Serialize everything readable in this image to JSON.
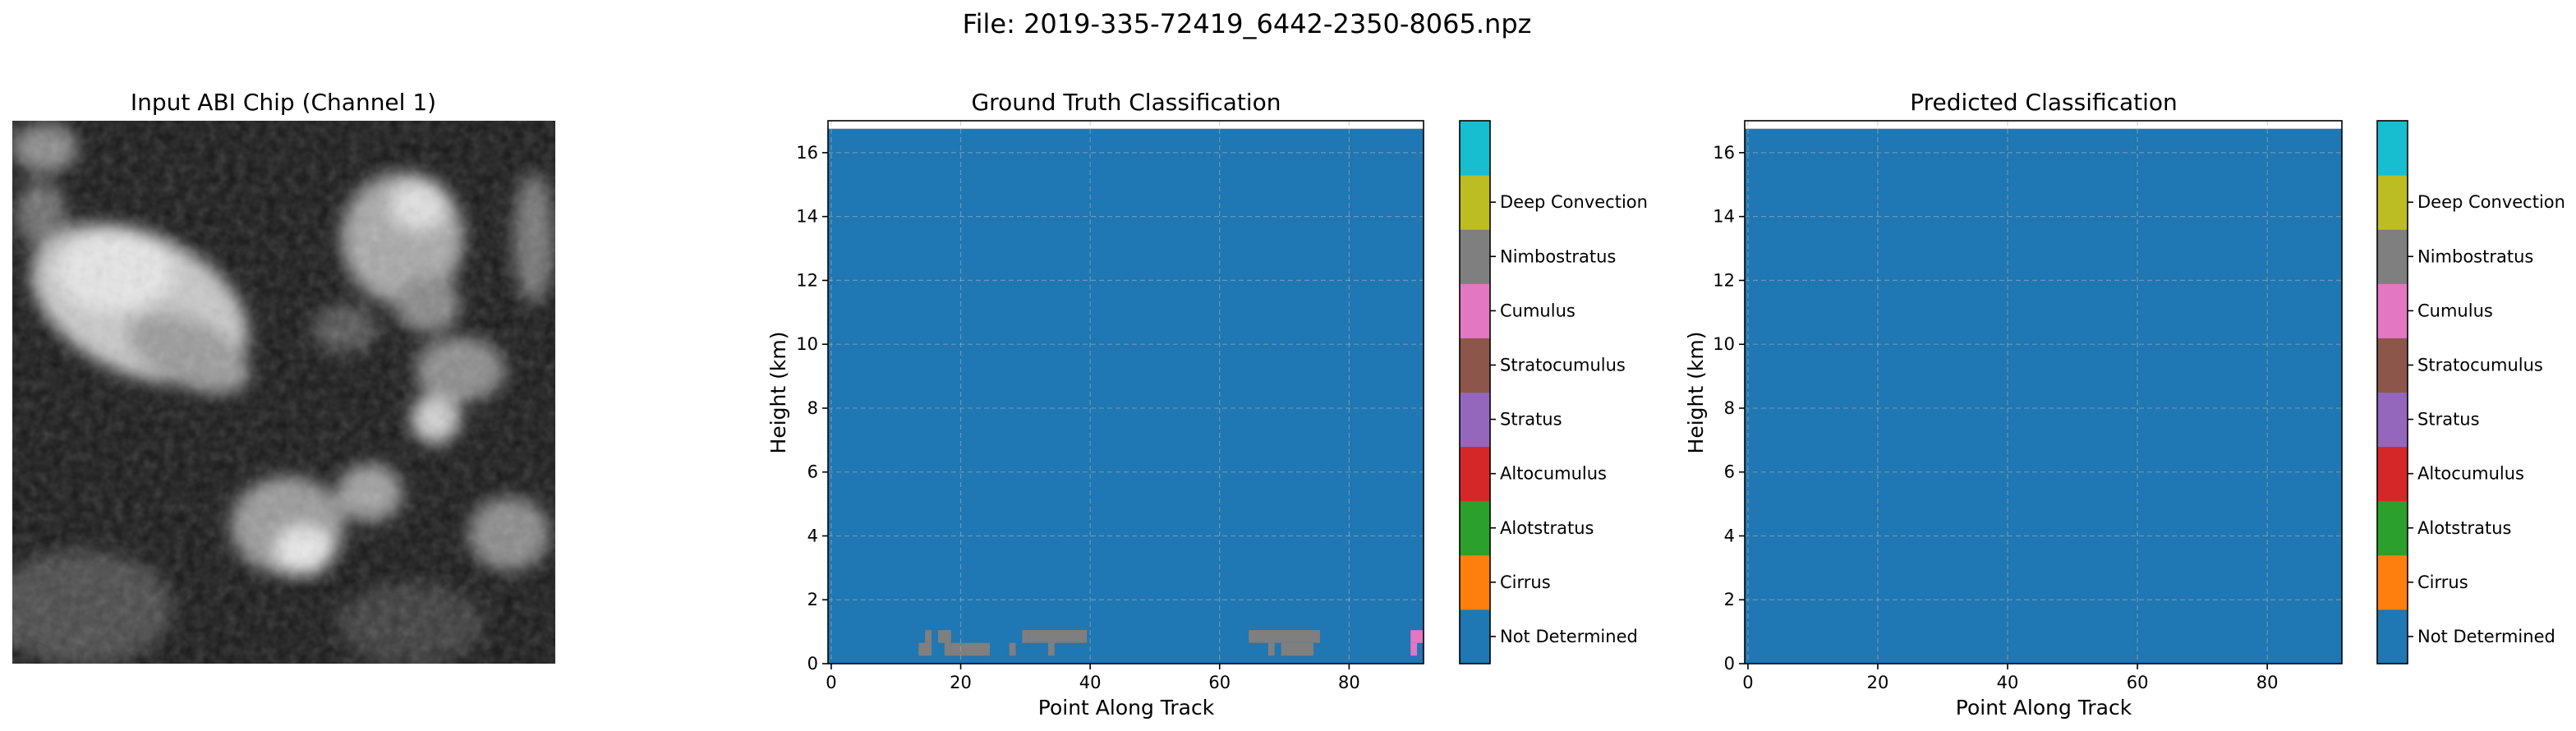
{
  "suptitle": "File: 2019-335-72419_6442-2350-8065.npz",
  "image_panel": {
    "title": "Input ABI Chip (Channel 1)"
  },
  "colors": {
    "Not Determined": "#1f77b4",
    "Cirrus": "#ff7f0e",
    "Alotstratus": "#2ca02c",
    "Altocumulus": "#d62728",
    "Stratus": "#9467bd",
    "Stratocumulus": "#8c564b",
    "Cumulus": "#e377c2",
    "Nimbostratus": "#7f7f7f",
    "Deep Convection": "#bcbd22",
    "Extra": "#17becf"
  },
  "colorbar": {
    "labels": [
      "Not Determined",
      "Cirrus",
      "Alotstratus",
      "Altocumulus",
      "Stratus",
      "Stratocumulus",
      "Cumulus",
      "Nimbostratus",
      "Deep Convection"
    ],
    "colors": [
      "#1f77b4",
      "#ff7f0e",
      "#2ca02c",
      "#d62728",
      "#9467bd",
      "#8c564b",
      "#e377c2",
      "#7f7f7f",
      "#bcbd22",
      "#17becf"
    ]
  },
  "chart_data": [
    {
      "type": "heatmap",
      "title": "Ground Truth Classification",
      "xlabel": "Point Along Track",
      "ylabel": "Height (km)",
      "xlim": [
        -0.5,
        91.5
      ],
      "ylim": [
        0,
        17
      ],
      "xticks": [
        0,
        20,
        40,
        60,
        80
      ],
      "yticks": [
        0,
        2,
        4,
        6,
        8,
        10,
        12,
        14,
        16
      ],
      "grid": true,
      "background_class": "Not Determined",
      "cells": [
        {
          "x0": 13.5,
          "x1": 15.5,
          "y0": 0.25,
          "y1": 0.65,
          "class": "Nimbostratus"
        },
        {
          "x0": 14.5,
          "x1": 15.5,
          "y0": 0.65,
          "y1": 1.05,
          "class": "Nimbostratus"
        },
        {
          "x0": 18.5,
          "x1": 24.5,
          "y0": 0.25,
          "y1": 0.65,
          "class": "Nimbostratus"
        },
        {
          "x0": 17.5,
          "x1": 18.5,
          "y0": 0.25,
          "y1": 1.05,
          "class": "Nimbostratus"
        },
        {
          "x0": 16.5,
          "x1": 18.5,
          "y0": 0.65,
          "y1": 1.05,
          "class": "Nimbostratus"
        },
        {
          "x0": 27.5,
          "x1": 28.5,
          "y0": 0.25,
          "y1": 0.65,
          "class": "Nimbostratus"
        },
        {
          "x0": 29.5,
          "x1": 30.5,
          "y0": 0.65,
          "y1": 1.05,
          "class": "Nimbostratus"
        },
        {
          "x0": 30.5,
          "x1": 39.5,
          "y0": 0.65,
          "y1": 1.05,
          "class": "Nimbostratus"
        },
        {
          "x0": 33.5,
          "x1": 34.5,
          "y0": 0.25,
          "y1": 0.65,
          "class": "Nimbostratus"
        },
        {
          "x0": 64.5,
          "x1": 75.5,
          "y0": 0.65,
          "y1": 1.05,
          "class": "Nimbostratus"
        },
        {
          "x0": 67.5,
          "x1": 68.5,
          "y0": 0.25,
          "y1": 0.65,
          "class": "Nimbostratus"
        },
        {
          "x0": 69.5,
          "x1": 74.5,
          "y0": 0.25,
          "y1": 0.65,
          "class": "Nimbostratus"
        },
        {
          "x0": 89.5,
          "x1": 91.5,
          "y0": 0.65,
          "y1": 1.05,
          "class": "Cumulus"
        },
        {
          "x0": 89.5,
          "x1": 90.5,
          "y0": 0.25,
          "y1": 0.65,
          "class": "Cumulus"
        }
      ]
    },
    {
      "type": "heatmap",
      "title": "Predicted Classification",
      "xlabel": "Point Along Track",
      "ylabel": "Height (km)",
      "xlim": [
        -0.5,
        91.5
      ],
      "ylim": [
        0,
        17
      ],
      "xticks": [
        0,
        20,
        40,
        60,
        80
      ],
      "yticks": [
        0,
        2,
        4,
        6,
        8,
        10,
        12,
        14,
        16
      ],
      "grid": true,
      "background_class": "Not Determined",
      "cells": []
    }
  ]
}
